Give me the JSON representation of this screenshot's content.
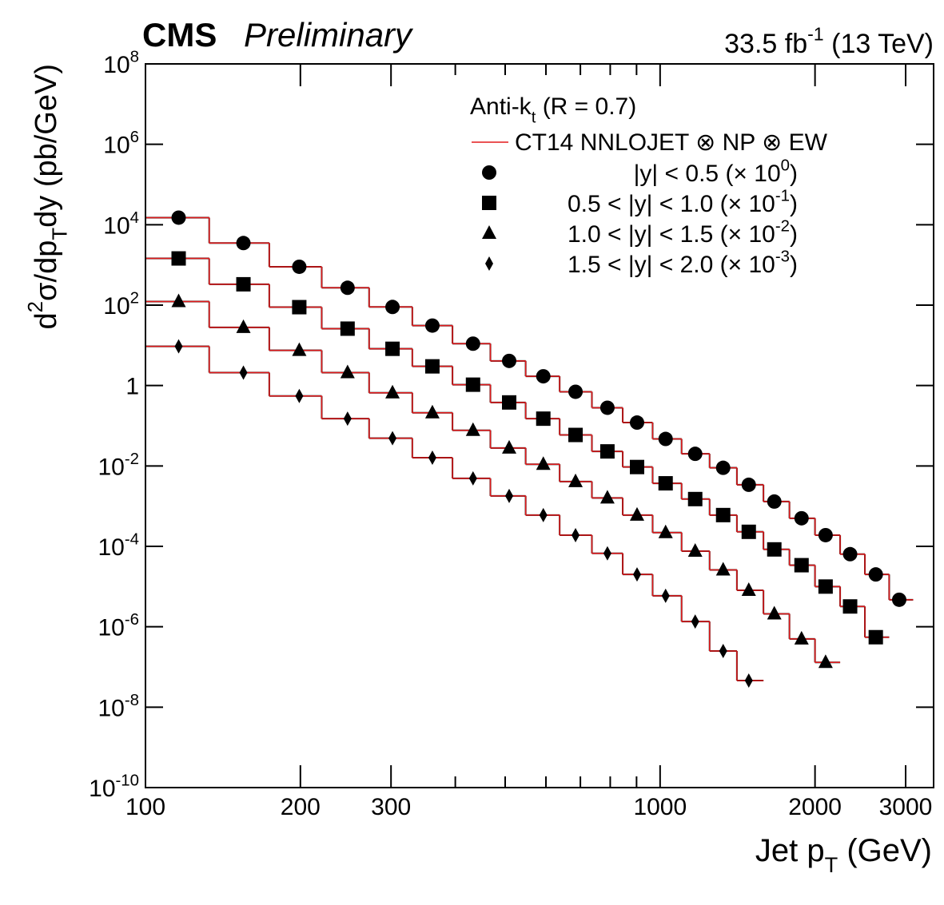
{
  "chart_data": {
    "type": "step-scatter",
    "experiment": "CMS",
    "status": "Preliminary",
    "lumi": [
      "33.5 fb",
      "-1",
      " (13 TeV)"
    ],
    "x_label": [
      "Jet p",
      "T",
      "   (GeV)"
    ],
    "y_label": [
      "d",
      "2",
      "σ/dp",
      "T",
      "dy   (pb/GeV)"
    ],
    "legend_header": [
      "Anti-k",
      "t",
      " (R = 0.7)"
    ],
    "log_x": true,
    "log_y": true,
    "xlim": [
      100,
      3400
    ],
    "ylim": [
      1e-10,
      100000000.0
    ],
    "xticks": [
      100,
      200,
      300,
      1000,
      2000,
      3000
    ],
    "xminorticks": [
      400,
      500,
      600,
      700,
      800,
      900
    ],
    "yticks": [
      {
        "value": 1e-10,
        "label": "10",
        "sup": "-10"
      },
      {
        "value": 1e-08,
        "label": "10",
        "sup": "-8"
      },
      {
        "value": 1e-06,
        "label": "10",
        "sup": "-6"
      },
      {
        "value": 0.0001,
        "label": "10",
        "sup": "-4"
      },
      {
        "value": 0.01,
        "label": "10",
        "sup": "-2"
      },
      1,
      {
        "value": 100,
        "label": "10",
        "sup": "2"
      },
      {
        "value": 10000,
        "label": "10",
        "sup": "4"
      },
      {
        "value": 1000000,
        "label": "10",
        "sup": "6"
      },
      {
        "value": 100000000,
        "label": "10",
        "sup": "8"
      }
    ],
    "theory": {
      "name": "CT14 NNLOJET ⊗ NP ⊗ EW",
      "color": "#e31a1c"
    },
    "series": [
      {
        "name": [
          "|y| < 0.5 (× 10",
          "0",
          ")"
        ],
        "marker": "circle",
        "color": "#000000",
        "bins": [
          100,
          133,
          174,
          220,
          272,
          330,
          395,
          468,
          548,
          638,
          737,
          846,
          967,
          1101,
          1248,
          1410,
          1588,
          1784,
          2000,
          2238,
          2500,
          2787,
          3103
        ],
        "x": [
          116,
          155,
          199,
          247,
          302,
          361,
          433,
          509,
          593,
          685,
          790,
          902,
          1025,
          1170,
          1326,
          1487,
          1667,
          1883,
          2097,
          2340,
          2625,
          2915
        ],
        "values": [
          15000,
          3500,
          900,
          270,
          90,
          31,
          11,
          4.1,
          1.7,
          0.7,
          0.28,
          0.12,
          0.047,
          0.02,
          0.009,
          0.0034,
          0.0013,
          0.0005,
          0.00019,
          6.4e-05,
          2e-05,
          4.7e-06
        ],
        "theory_values": [
          15000,
          3500,
          900,
          270,
          90,
          31,
          11,
          4.1,
          1.7,
          0.7,
          0.28,
          0.12,
          0.047,
          0.02,
          0.009,
          0.0034,
          0.0013,
          0.0005,
          0.00019,
          6.4e-05,
          2e-05,
          4.7e-06
        ]
      },
      {
        "name": [
          "0.5 < |y| < 1.0 (× 10",
          "-1",
          ")"
        ],
        "marker": "square",
        "color": "#000000",
        "bins": [
          100,
          133,
          174,
          220,
          272,
          330,
          395,
          468,
          548,
          638,
          737,
          846,
          967,
          1101,
          1248,
          1410,
          1588,
          1784,
          2000,
          2238,
          2500,
          2787
        ],
        "x": [
          116,
          155,
          199,
          247,
          302,
          361,
          433,
          509,
          593,
          685,
          790,
          902,
          1025,
          1170,
          1326,
          1487,
          1667,
          1883,
          2097,
          2340,
          2625
        ],
        "values": [
          1450,
          330,
          89,
          26,
          8.2,
          3,
          1.05,
          0.38,
          0.15,
          0.059,
          0.023,
          0.0094,
          0.0037,
          0.0015,
          0.0006,
          0.00023,
          8.4e-05,
          3.4e-05,
          1e-05,
          3.2e-06,
          5.5e-07
        ],
        "theory_values": [
          1450,
          330,
          89,
          26,
          8.2,
          3,
          1.05,
          0.38,
          0.15,
          0.059,
          0.023,
          0.0094,
          0.0037,
          0.0015,
          0.0006,
          0.00023,
          8.4e-05,
          3.4e-05,
          1e-05,
          3.2e-06,
          5.5e-07
        ]
      },
      {
        "name": [
          "1.0 < |y| < 1.5 (× 10",
          "-2",
          ")"
        ],
        "marker": "triangle",
        "color": "#000000",
        "bins": [
          100,
          133,
          174,
          220,
          272,
          330,
          395,
          468,
          548,
          638,
          737,
          846,
          967,
          1101,
          1248,
          1410,
          1588,
          1784,
          2000,
          2238
        ],
        "x": [
          116,
          155,
          199,
          247,
          302,
          361,
          433,
          509,
          593,
          685,
          790,
          902,
          1025,
          1170,
          1326,
          1487,
          1667,
          1883,
          2097
        ],
        "values": [
          123,
          28,
          7.5,
          2.1,
          0.66,
          0.21,
          0.077,
          0.028,
          0.011,
          0.0041,
          0.0016,
          0.0006,
          0.00022,
          7.6e-05,
          2.6e-05,
          8.1e-06,
          2.1e-06,
          5e-07,
          1.3e-07
        ],
        "theory_values": [
          123,
          28,
          7.5,
          2.1,
          0.66,
          0.21,
          0.077,
          0.028,
          0.011,
          0.0041,
          0.0016,
          0.0006,
          0.00022,
          7.6e-05,
          2.6e-05,
          8.1e-06,
          2.1e-06,
          5e-07,
          1.3e-07
        ]
      },
      {
        "name": [
          "1.5 < |y| < 2.0 (× 10",
          "-3",
          ")"
        ],
        "marker": "diamond",
        "color": "#000000",
        "bins": [
          100,
          133,
          174,
          220,
          272,
          330,
          395,
          468,
          548,
          638,
          737,
          846,
          967,
          1101,
          1248,
          1410,
          1588
        ],
        "x": [
          116,
          155,
          199,
          247,
          302,
          361,
          433,
          509,
          593,
          685,
          790,
          902,
          1025,
          1170,
          1326,
          1487
        ],
        "values": [
          9.4,
          2.1,
          0.55,
          0.15,
          0.049,
          0.016,
          0.0049,
          0.0018,
          0.0006,
          0.00019,
          6.7e-05,
          2e-05,
          5.9e-06,
          1.35e-06,
          2.5e-07,
          4.6e-08
        ],
        "theory_values": [
          9.4,
          2.1,
          0.55,
          0.15,
          0.049,
          0.016,
          0.0049,
          0.0018,
          0.0006,
          0.00019,
          6.7e-05,
          2e-05,
          5.9e-06,
          1.35e-06,
          2.5e-07,
          4.6e-08
        ]
      }
    ]
  }
}
